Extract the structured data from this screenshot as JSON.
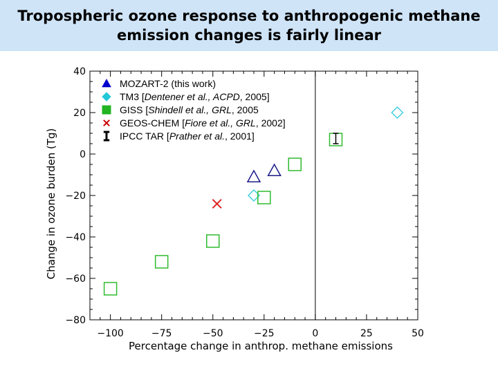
{
  "title": {
    "line1": "Tropospheric ozone response to anthropogenic methane",
    "line2": "emission changes is fairly linear"
  },
  "chart_data": {
    "type": "scatter",
    "xlabel": "Percentage change in anthrop. methane emissions",
    "ylabel": "Change in ozone burden (Tg)",
    "xlim": [
      -110,
      50
    ],
    "ylim": [
      -80,
      40
    ],
    "x_ticks": [
      -100,
      -75,
      -50,
      -25,
      0,
      25,
      50
    ],
    "y_ticks": [
      40,
      20,
      0,
      -20,
      -40,
      -60,
      -80
    ],
    "x_tick_labels": [
      "−100",
      "−75",
      "−50",
      "−25",
      "0",
      "25",
      "50"
    ],
    "y_tick_labels": [
      "40",
      "20",
      "0",
      "−20",
      "−40",
      "−60",
      "−80"
    ],
    "vertical_line_at_x": 0,
    "legend_position": "top-left",
    "series": [
      {
        "name": "MOZART-2 (this work)",
        "marker": "triangle",
        "legend_color": "#0000cc",
        "plot_color": "#1a1a8a",
        "points": [
          {
            "x": -30,
            "y": -11
          },
          {
            "x": -20,
            "y": -8
          }
        ]
      },
      {
        "name": "TM3 [Dentener et al., ACPD, 2005]",
        "marker": "diamond",
        "legend_color": "#22c8d8",
        "plot_color": "#3fd0de",
        "points": [
          {
            "x": -30,
            "y": -20
          },
          {
            "x": 40,
            "y": 20
          }
        ]
      },
      {
        "name": "GISS [Shindell et al., GRL, 2005]",
        "marker": "square",
        "legend_color": "#22b422",
        "plot_color": "#2ebb2e",
        "points": [
          {
            "x": -100,
            "y": -65
          },
          {
            "x": -75,
            "y": -52
          },
          {
            "x": -50,
            "y": -42
          },
          {
            "x": -25,
            "y": -21
          },
          {
            "x": -10,
            "y": -5
          },
          {
            "x": 10,
            "y": 7
          }
        ]
      },
      {
        "name": "GEOS-CHEM [Fiore et al., GRL, 2002]",
        "marker": "x",
        "legend_color": "#cc0000",
        "plot_color": "#dd2222",
        "points": [
          {
            "x": -48,
            "y": -24
          }
        ]
      },
      {
        "name": "IPCC TAR [Prather et al., 2001]",
        "marker": "errorbar",
        "legend_color": "#000000",
        "plot_color": "#000000",
        "points": [
          {
            "x": 10,
            "y": 8,
            "y_low": 5,
            "y_high": 10
          }
        ]
      }
    ],
    "legend_labels": [
      [
        {
          "t": "MOZART-2 (this work)"
        }
      ],
      [
        {
          "t": "TM3 ["
        },
        {
          "t": "Dentener et al., ACPD",
          "i": true
        },
        {
          "t": ", 2005]"
        }
      ],
      [
        {
          "t": "GISS ["
        },
        {
          "t": "Shindell et al., GRL",
          "i": true
        },
        {
          "t": ", 2005"
        }
      ],
      [
        {
          "t": "GEOS-CHEM ["
        },
        {
          "t": "Fiore et al., GRL",
          "i": true
        },
        {
          "t": ", 2002]"
        }
      ],
      [
        {
          "t": "IPCC TAR ["
        },
        {
          "t": "Prather et al.",
          "i": true
        },
        {
          "t": ", 2001]"
        }
      ]
    ]
  }
}
